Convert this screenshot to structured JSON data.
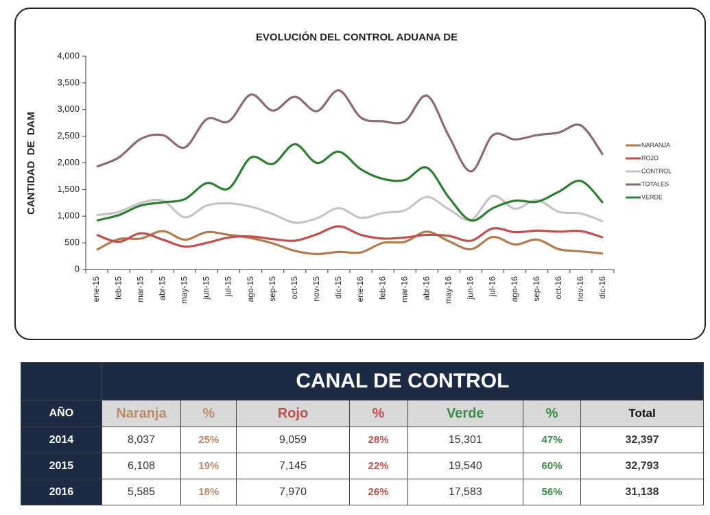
{
  "chart_data": {
    "type": "line",
    "title": "EVOLUCIÓN DEL CONTROL ADUANA DE",
    "y_label": "CANTIDAD  DE  DAM",
    "categories": [
      "ene-15",
      "feb-15",
      "mar-15",
      "abr-15",
      "may-15",
      "jun-15",
      "jul-15",
      "ago-15",
      "sep-15",
      "oct-15",
      "nov-15",
      "dic-15",
      "ene-16",
      "feb-16",
      "mar-16",
      "abr-16",
      "may-16",
      "jun-16",
      "jul-16",
      "ago-16",
      "sep-16",
      "oct-16",
      "nov-16",
      "dic-16"
    ],
    "series": [
      {
        "name": "NARANJA",
        "color": "#b07b50",
        "values": [
          370,
          570,
          580,
          720,
          560,
          700,
          650,
          590,
          490,
          350,
          290,
          330,
          320,
          500,
          520,
          710,
          530,
          380,
          610,
          470,
          560,
          380,
          340,
          300
        ]
      },
      {
        "name": "ROJO",
        "color": "#c0504d",
        "values": [
          650,
          520,
          680,
          560,
          430,
          500,
          600,
          620,
          570,
          540,
          660,
          810,
          650,
          580,
          600,
          650,
          630,
          540,
          770,
          700,
          730,
          710,
          720,
          600
        ]
      },
      {
        "name": "CONTROL",
        "color": "#c4c4c4",
        "values": [
          1020,
          1080,
          1250,
          1290,
          980,
          1200,
          1240,
          1180,
          1040,
          880,
          960,
          1150,
          970,
          1060,
          1110,
          1360,
          1130,
          930,
          1380,
          1140,
          1300,
          1080,
          1050,
          900
        ]
      },
      {
        "name": "TOTALES",
        "color": "#8b6a70",
        "values": [
          1930,
          2100,
          2450,
          2520,
          2290,
          2820,
          2780,
          3280,
          2980,
          3240,
          2970,
          3360,
          2850,
          2780,
          2780,
          3260,
          2500,
          1840,
          2520,
          2440,
          2520,
          2570,
          2700,
          2150
        ]
      },
      {
        "name": "VERDE",
        "color": "#2e7d32",
        "values": [
          920,
          1020,
          1200,
          1260,
          1320,
          1620,
          1520,
          2100,
          1980,
          2350,
          2000,
          2210,
          1880,
          1700,
          1680,
          1910,
          1350,
          920,
          1150,
          1290,
          1270,
          1460,
          1660,
          1250
        ]
      }
    ],
    "ylim": [
      0,
      4000
    ],
    "yticks": [
      0,
      500,
      {
        "value": 1000,
        "label": "1,000"
      },
      {
        "value": 1500,
        "label": "1,500"
      },
      {
        "value": 2000,
        "label": "2,000"
      },
      {
        "value": 2500,
        "label": "2,500"
      },
      {
        "value": 3000,
        "label": "3,000"
      },
      {
        "value": 3500,
        "label": "3,500"
      },
      {
        "value": 4000,
        "label": "4,000"
      }
    ],
    "grid": false,
    "legend": "right"
  },
  "table": {
    "title": "CANAL DE CONTROL",
    "columns": [
      "AÑO",
      "Naranja",
      "%",
      "Rojo",
      "%",
      "Verde",
      "%",
      "Total"
    ],
    "rows": [
      [
        "2014",
        "8,037",
        "25%",
        "9,059",
        "28%",
        "15,301",
        "47%",
        "32,397"
      ],
      [
        "2015",
        "6,108",
        "19%",
        "7,145",
        "22%",
        "19,540",
        "60%",
        "32,793"
      ],
      [
        "2016",
        "5,585",
        "18%",
        "7,970",
        "26%",
        "17,583",
        "56%",
        "31,138"
      ]
    ]
  }
}
